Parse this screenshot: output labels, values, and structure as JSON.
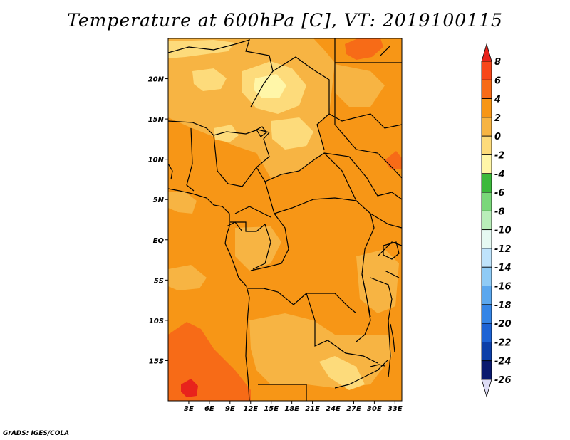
{
  "title": "Temperature at 600hPa [C], VT: 2019100115",
  "credit": "GrADS: IGES/COLA",
  "map": {
    "lat_range": [
      -20,
      25
    ],
    "lon_range": [
      0,
      34
    ],
    "lat_ticks": [
      {
        "value": 20,
        "label": "20N"
      },
      {
        "value": 15,
        "label": "15N"
      },
      {
        "value": 10,
        "label": "10N"
      },
      {
        "value": 5,
        "label": "5N"
      },
      {
        "value": 0,
        "label": "EQ"
      },
      {
        "value": -5,
        "label": "5S"
      },
      {
        "value": -10,
        "label": "10S"
      },
      {
        "value": -15,
        "label": "15S"
      }
    ],
    "lon_ticks": [
      {
        "value": 3,
        "label": "3E"
      },
      {
        "value": 6,
        "label": "6E"
      },
      {
        "value": 9,
        "label": "9E"
      },
      {
        "value": 12,
        "label": "12E"
      },
      {
        "value": 15,
        "label": "15E"
      },
      {
        "value": 18,
        "label": "18E"
      },
      {
        "value": 21,
        "label": "21E"
      },
      {
        "value": 24,
        "label": "24E"
      },
      {
        "value": 27,
        "label": "27E"
      },
      {
        "value": 30,
        "label": "30E"
      },
      {
        "value": 33,
        "label": "33E"
      }
    ],
    "dominant_value_range": [
      2,
      4
    ]
  },
  "colorbar": {
    "levels": [
      "8",
      "6",
      "4",
      "2",
      "0",
      "-2",
      "-4",
      "-6",
      "-8",
      "-10",
      "-12",
      "-14",
      "-16",
      "-18",
      "-20",
      "-22",
      "-24",
      "-26"
    ],
    "colors": [
      "#e8231c",
      "#f7471a",
      "#f76b17",
      "#f79616",
      "#f7b443",
      "#fddb7b",
      "#fff6a8",
      "#3cb93c",
      "#7ad77a",
      "#b9edb9",
      "#e6f9f2",
      "#bfe3fb",
      "#8fcbf6",
      "#5ba7ee",
      "#3585e6",
      "#1d63d4",
      "#0c3fa8",
      "#0a1a6e",
      "#dddcf5"
    ]
  },
  "field_colors": {
    "c4_6": "#f76b17",
    "c2_4": "#f79616",
    "c0_2": "#f7b443",
    "cm2_0": "#fddb7b",
    "cm4_m2": "#fff6a8"
  }
}
